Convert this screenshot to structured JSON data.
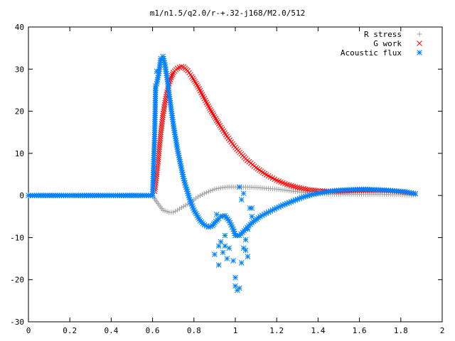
{
  "chart_data": {
    "type": "scatter",
    "title": "m1/n1.5/q2.0/r-+.32-j168/M2.0/512",
    "xlabel": "",
    "ylabel": "",
    "xlim": [
      0,
      2
    ],
    "ylim": [
      -30,
      40
    ],
    "xticks": [
      0,
      0.2,
      0.4,
      0.6,
      0.8,
      1,
      1.2,
      1.4,
      1.6,
      1.8,
      2
    ],
    "xtick_labels": [
      "0",
      "0.2",
      "0.4",
      "0.6",
      "0.8",
      "1",
      "1.2",
      "1.4",
      "1.6",
      "1.8",
      "2"
    ],
    "yticks": [
      -30,
      -20,
      -10,
      0,
      10,
      20,
      30,
      40
    ],
    "ytick_labels": [
      "-30",
      "-20",
      "-10",
      "0",
      "10",
      "20",
      "30",
      "40"
    ],
    "grid": false,
    "legend_position": "top-right",
    "series": [
      {
        "name": "R stress",
        "marker": "plus",
        "color": "#a0a0a0",
        "x": [
          0.0,
          0.2,
          0.4,
          0.6,
          0.62,
          0.65,
          0.68,
          0.7,
          0.72,
          0.75,
          0.78,
          0.8,
          0.82,
          0.85,
          0.88,
          0.9,
          0.93,
          0.96,
          1.0,
          1.05,
          1.1,
          1.15,
          1.2,
          1.25,
          1.3,
          1.35,
          1.4,
          1.45,
          1.5,
          1.55,
          1.6,
          1.65,
          1.7,
          1.75,
          1.8,
          1.85,
          1.87
        ],
        "y": [
          0,
          0,
          0,
          0,
          -1.5,
          -3.5,
          -4.0,
          -4.0,
          -3.5,
          -2.6,
          -1.8,
          -1.0,
          -0.3,
          0.5,
          1.1,
          1.5,
          1.8,
          2.0,
          2.0,
          2.0,
          1.9,
          1.7,
          1.5,
          1.2,
          0.9,
          0.6,
          0.4,
          0.3,
          0.3,
          0.3,
          0.3,
          0.3,
          0.3,
          0.2,
          0.2,
          0.1,
          0.1
        ]
      },
      {
        "name": "G work",
        "marker": "cross",
        "color": "#ff0000",
        "x": [
          0.61,
          0.62,
          0.63,
          0.64,
          0.65,
          0.66,
          0.67,
          0.68,
          0.69,
          0.7,
          0.72,
          0.74,
          0.75,
          0.77,
          0.79,
          0.82,
          0.85,
          0.88,
          0.92,
          0.96,
          1.0,
          1.05,
          1.1,
          1.15,
          1.2,
          1.25,
          1.3,
          1.35,
          1.4,
          1.45,
          1.5,
          1.55,
          1.6,
          1.65,
          1.7,
          1.75,
          1.8,
          1.85,
          1.87
        ],
        "y": [
          1,
          5,
          10,
          15,
          19,
          22,
          24.5,
          26.5,
          28,
          29.2,
          30.2,
          30.6,
          30.5,
          29.6,
          28.2,
          25.8,
          23.0,
          20.3,
          17.0,
          14.0,
          11.4,
          8.7,
          6.6,
          4.9,
          3.6,
          2.6,
          1.9,
          1.4,
          1.1,
          1.0,
          1.0,
          1.1,
          1.2,
          1.2,
          1.2,
          1.1,
          0.9,
          0.6,
          0.4
        ]
      },
      {
        "name": "Acoustic flux",
        "marker": "star",
        "color": "#0080ff",
        "x": [
          0.0,
          0.1,
          0.2,
          0.3,
          0.4,
          0.5,
          0.6,
          0.61,
          0.615,
          0.62,
          0.63,
          0.64,
          0.65,
          0.66,
          0.67,
          0.68,
          0.7,
          0.72,
          0.75,
          0.78,
          0.8,
          0.83,
          0.85,
          0.87,
          0.89,
          0.9,
          0.92,
          0.93,
          0.95,
          0.97,
          0.99,
          1.0,
          1.02,
          1.05,
          1.08,
          1.12,
          1.17,
          1.22,
          1.27,
          1.32,
          1.37,
          1.42,
          1.47,
          1.52,
          1.57,
          1.62,
          1.67,
          1.72,
          1.77,
          1.82,
          1.85,
          1.87
        ],
        "y": [
          0,
          0,
          0,
          0,
          0,
          0,
          0,
          14.5,
          26,
          26.5,
          29,
          32.5,
          33,
          31,
          28,
          24,
          17,
          11,
          4,
          -1,
          -3.5,
          -6,
          -7,
          -7.5,
          -7.2,
          -6.5,
          -5.5,
          -5,
          -4.8,
          -6,
          -8,
          -9.5,
          -9.5,
          -8,
          -6.5,
          -5,
          -3.7,
          -2.5,
          -1.5,
          -0.5,
          0.2,
          0.7,
          1.1,
          1.3,
          1.4,
          1.5,
          1.4,
          1.3,
          1.1,
          0.9,
          0.6,
          0.4
        ]
      },
      {
        "name": "",
        "marker": "star",
        "color": "#0080ff",
        "x": [
          0.615,
          0.62,
          0.91,
          0.93,
          0.93,
          0.95,
          0.92,
          0.94,
          0.97,
          0.96,
          0.9,
          0.92,
          0.95,
          0.99,
          1.0,
          1.01,
          1.0,
          1.02,
          1.03,
          1.04,
          1.05,
          1.05,
          1.06,
          1.06,
          1.03,
          1.02,
          1.04,
          1.07,
          1.08,
          1.08
        ],
        "y": [
          25.5,
          29.5,
          -4.5,
          -5.0,
          -11,
          -9.5,
          -12,
          -13.5,
          -12.5,
          -15,
          -14,
          -16.5,
          -12,
          -15.5,
          -19.5,
          -22.5,
          -21.5,
          -22,
          -16,
          -12.5,
          -10.5,
          -13,
          -14.5,
          -8,
          -1,
          2,
          0.5,
          -3,
          -5,
          -3
        ]
      }
    ]
  }
}
